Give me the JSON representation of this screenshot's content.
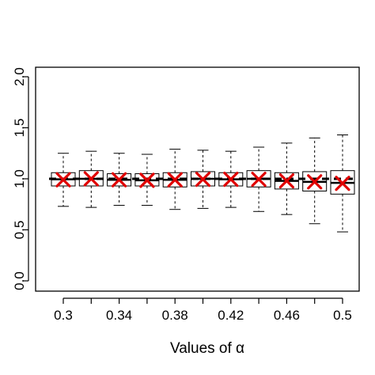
{
  "chart_data": {
    "type": "box",
    "xlabel": "Values of α",
    "ylabel": "",
    "title": "",
    "ylim": [
      0,
      2
    ],
    "yticks": [
      "0.0",
      "0.5",
      "1.0",
      "1.5",
      "2.0"
    ],
    "xtick_labels": [
      "0.3",
      "0.34",
      "0.38",
      "0.42",
      "0.46",
      "0.5"
    ],
    "categories": [
      "0.30",
      "0.32",
      "0.34",
      "0.36",
      "0.38",
      "0.40",
      "0.42",
      "0.44",
      "0.46",
      "0.48",
      "0.50"
    ],
    "reference_line": 1.0,
    "mean_marker_color": "#e00000",
    "boxes": [
      {
        "lower_whisker": 0.73,
        "q1": 0.93,
        "median": 0.995,
        "q3": 1.06,
        "upper_whisker": 1.25,
        "mean": 0.99
      },
      {
        "lower_whisker": 0.72,
        "q1": 0.93,
        "median": 1.0,
        "q3": 1.08,
        "upper_whisker": 1.27,
        "mean": 1.0
      },
      {
        "lower_whisker": 0.74,
        "q1": 0.93,
        "median": 0.99,
        "q3": 1.05,
        "upper_whisker": 1.25,
        "mean": 0.99
      },
      {
        "lower_whisker": 0.74,
        "q1": 0.93,
        "median": 0.985,
        "q3": 1.05,
        "upper_whisker": 1.24,
        "mean": 0.985
      },
      {
        "lower_whisker": 0.7,
        "q1": 0.92,
        "median": 0.99,
        "q3": 1.06,
        "upper_whisker": 1.29,
        "mean": 0.99
      },
      {
        "lower_whisker": 0.71,
        "q1": 0.93,
        "median": 1.0,
        "q3": 1.07,
        "upper_whisker": 1.28,
        "mean": 0.995
      },
      {
        "lower_whisker": 0.72,
        "q1": 0.93,
        "median": 0.995,
        "q3": 1.06,
        "upper_whisker": 1.27,
        "mean": 0.995
      },
      {
        "lower_whisker": 0.68,
        "q1": 0.92,
        "median": 1.0,
        "q3": 1.08,
        "upper_whisker": 1.31,
        "mean": 0.995
      },
      {
        "lower_whisker": 0.65,
        "q1": 0.9,
        "median": 0.98,
        "q3": 1.06,
        "upper_whisker": 1.35,
        "mean": 0.98
      },
      {
        "lower_whisker": 0.56,
        "q1": 0.88,
        "median": 0.97,
        "q3": 1.07,
        "upper_whisker": 1.4,
        "mean": 0.97
      },
      {
        "lower_whisker": 0.48,
        "q1": 0.85,
        "median": 0.96,
        "q3": 1.08,
        "upper_whisker": 1.43,
        "mean": 0.955
      }
    ]
  }
}
